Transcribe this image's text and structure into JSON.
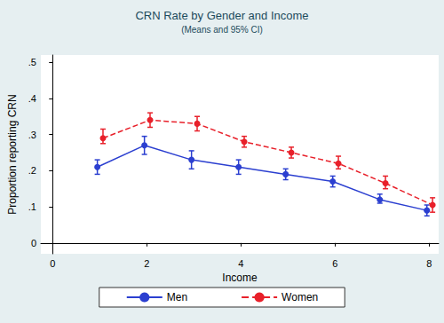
{
  "chart_data": {
    "type": "line",
    "title": "CRN Rate by Gender and Income",
    "subtitle": "(Means and 95% CI)",
    "x_label": "Income",
    "y_label": "Proportion reporting CRN",
    "xlim": [
      -0.25,
      8.2
    ],
    "xticks": [
      0,
      2,
      4,
      6,
      8
    ],
    "ylim": [
      -0.03,
      0.52
    ],
    "yticks": [
      0,
      {
        "value": 0.1,
        "label": ".1"
      },
      {
        "value": 0.2,
        "label": ".2"
      },
      {
        "value": 0.3,
        "label": ".3"
      },
      {
        "value": 0.4,
        "label": ".4"
      },
      {
        "value": 0.5,
        "label": ".5"
      }
    ],
    "grid": false,
    "legend": "bottom",
    "series": [
      {
        "name": "Men",
        "color": "#2b3fd0",
        "line_style": "solid",
        "marker": "circle",
        "x": [
          0.95,
          1.95,
          2.95,
          3.95,
          4.95,
          5.95,
          6.95,
          7.95
        ],
        "values": [
          0.21,
          0.27,
          0.23,
          0.21,
          0.19,
          0.17,
          0.12,
          0.09
        ],
        "ci_low": [
          0.19,
          0.245,
          0.205,
          0.19,
          0.175,
          0.155,
          0.11,
          0.075
        ],
        "ci_high": [
          0.23,
          0.295,
          0.255,
          0.23,
          0.205,
          0.185,
          0.135,
          0.105
        ]
      },
      {
        "name": "Women",
        "color": "#e8202a",
        "line_style": "dashed",
        "marker": "circle",
        "x": [
          1.07,
          2.07,
          3.07,
          4.07,
          5.07,
          6.07,
          7.07,
          8.07
        ],
        "values": [
          0.29,
          0.34,
          0.33,
          0.28,
          0.25,
          0.22,
          0.165,
          0.105
        ],
        "ci_low": [
          0.275,
          0.32,
          0.31,
          0.265,
          0.235,
          0.205,
          0.15,
          0.085
        ],
        "ci_high": [
          0.315,
          0.36,
          0.35,
          0.295,
          0.265,
          0.24,
          0.185,
          0.125
        ]
      }
    ]
  }
}
